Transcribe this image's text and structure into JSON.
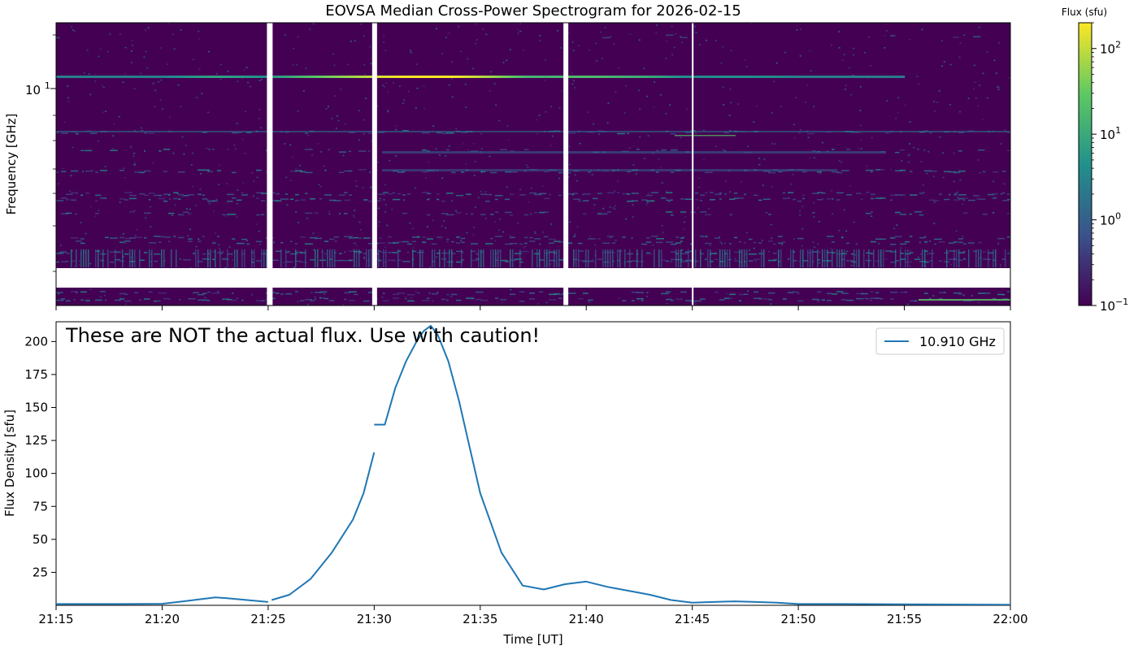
{
  "chart_data": [
    {
      "type": "heatmap",
      "title": "EOVSA Median Cross-Power Spectrogram for 2026-02-15",
      "ylabel": "Frequency [GHz]",
      "y_scale": "log",
      "y_tick_labels": [
        "10^1"
      ],
      "y_tick_major": {
        "base": "10",
        "exponent": "1",
        "value": 10
      },
      "x_range": [
        "21:15",
        "22:00"
      ],
      "colormap": "viridis",
      "colorbar": {
        "label": "Flux (sfu)",
        "scale": "log",
        "range": [
          0.1,
          200
        ],
        "ticks": [
          {
            "base": "10",
            "exponent": "2",
            "value": 100
          },
          {
            "base": "10",
            "exponent": "1",
            "value": 10
          },
          {
            "base": "10",
            "exponent": "0",
            "value": 1
          },
          {
            "base": "10",
            "exponent": "−1",
            "value": 0.1
          }
        ]
      },
      "gaps_time": [
        "21:25",
        "21:30",
        "21:39",
        "21:45"
      ],
      "features": [
        {
          "description_value_freq_ghz": 10.91,
          "time_start": "21:15",
          "time_end": "21:55",
          "peak_time": "21:32"
        }
      ]
    },
    {
      "type": "line",
      "xlabel": "Time [UT]",
      "ylabel": "Flux Density [sfu]",
      "annotation": "These are NOT the actual flux. Use with caution!",
      "legend": "top-right",
      "grid": false,
      "xlim": [
        "21:15",
        "22:00"
      ],
      "ylim": [
        0,
        215
      ],
      "x_ticks": [
        "21:15",
        "21:20",
        "21:25",
        "21:30",
        "21:35",
        "21:40",
        "21:45",
        "21:50",
        "21:55",
        "22:00"
      ],
      "y_ticks": [
        25,
        50,
        75,
        100,
        125,
        150,
        175,
        200
      ],
      "series": [
        {
          "name": "10.910 GHz",
          "color": "#1f77b4",
          "x": [
            "21:15",
            "21:18",
            "21:20",
            "21:21",
            "21:22",
            "21:22:30",
            "21:23",
            "21:24",
            "21:25",
            "21:25:10",
            "21:26",
            "21:27",
            "21:28",
            "21:29",
            "21:29:30",
            "21:30",
            "21:30",
            "21:30:30",
            "21:31",
            "21:31:30",
            "21:32",
            "21:32:20",
            "21:32:40",
            "21:33",
            "21:33:30",
            "21:34",
            "21:34:30",
            "21:35",
            "21:36",
            "21:37",
            "21:38",
            "21:39",
            "21:40",
            "21:41",
            "21:42",
            "21:43",
            "21:44",
            "21:45",
            "21:46",
            "21:47",
            "21:48",
            "21:49",
            "21:50",
            "21:52",
            "21:55",
            "22:00"
          ],
          "values": [
            1,
            1,
            1.2,
            3,
            5,
            6,
            5.5,
            4,
            2.5,
            4,
            8,
            20,
            40,
            65,
            85,
            116,
            137,
            137,
            165,
            185,
            200,
            208,
            212,
            205,
            185,
            155,
            120,
            85,
            40,
            15,
            12,
            16,
            18,
            14,
            11,
            8,
            4,
            2,
            2.5,
            3,
            2.5,
            2,
            1,
            1,
            0.8,
            0.5
          ]
        }
      ]
    }
  ]
}
